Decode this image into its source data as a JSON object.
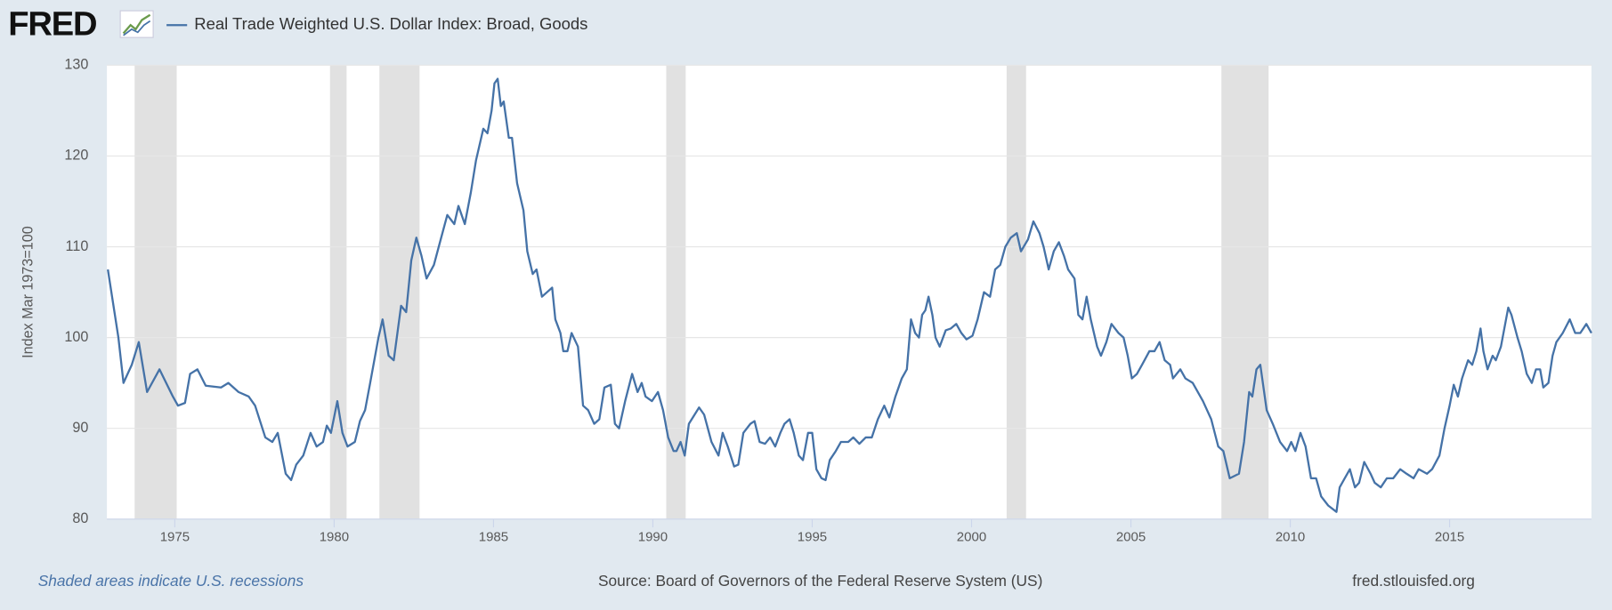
{
  "chart_data": {
    "type": "line",
    "logo": "FRED",
    "ylabel": "Index Mar 1973=100",
    "note": "Shaded areas indicate U.S. recessions",
    "source": "Source: Board of Governors of the Federal Reserve System (US)",
    "site": "fred.stlouisfed.org",
    "xlim": [
      1972.87,
      2019.45
    ],
    "xticks": [
      1975,
      1980,
      1985,
      1990,
      1995,
      2000,
      2005,
      2010,
      2015
    ],
    "ylim": [
      80,
      130
    ],
    "yticks": [
      80,
      90,
      100,
      110,
      120,
      130
    ],
    "grid": true,
    "recession_color": "#e1e1e1",
    "recessions": [
      [
        1973.74,
        1975.06
      ],
      [
        1979.87,
        1980.39
      ],
      [
        1981.42,
        1982.68
      ],
      [
        1990.42,
        1991.03
      ],
      [
        2001.1,
        2001.71
      ],
      [
        2007.84,
        2009.32
      ]
    ],
    "x": [
      1972.9,
      1973.23,
      1973.39,
      1973.65,
      1973.87,
      1974.13,
      1974.52,
      1974.94,
      1975.1,
      1975.32,
      1975.48,
      1975.71,
      1975.97,
      1976.45,
      1976.68,
      1977.0,
      1977.32,
      1977.52,
      1977.84,
      1978.06,
      1978.23,
      1978.48,
      1978.65,
      1978.81,
      1979.03,
      1979.26,
      1979.45,
      1979.65,
      1979.77,
      1979.9,
      1980.1,
      1980.26,
      1980.42,
      1980.65,
      1980.81,
      1980.97,
      1981.13,
      1981.39,
      1981.52,
      1981.71,
      1981.87,
      1982.1,
      1982.26,
      1982.42,
      1982.58,
      1982.74,
      1982.9,
      1983.13,
      1983.32,
      1983.55,
      1983.77,
      1983.9,
      1984.1,
      1984.29,
      1984.45,
      1984.68,
      1984.81,
      1984.94,
      1985.03,
      1985.13,
      1985.23,
      1985.32,
      1985.48,
      1985.58,
      1985.74,
      1985.94,
      1986.06,
      1986.23,
      1986.35,
      1986.52,
      1986.68,
      1986.84,
      1986.94,
      1987.1,
      1987.19,
      1987.32,
      1987.45,
      1987.65,
      1987.81,
      1987.97,
      1988.16,
      1988.32,
      1988.48,
      1988.68,
      1988.81,
      1988.94,
      1989.13,
      1989.35,
      1989.52,
      1989.65,
      1989.77,
      1989.97,
      1990.16,
      1990.32,
      1990.48,
      1990.65,
      1990.74,
      1990.87,
      1991.0,
      1991.13,
      1991.45,
      1991.61,
      1991.84,
      1992.06,
      1992.19,
      1992.35,
      1992.55,
      1992.68,
      1992.84,
      1993.06,
      1993.19,
      1993.35,
      1993.52,
      1993.68,
      1993.84,
      1994.0,
      1994.13,
      1994.29,
      1994.42,
      1994.58,
      1994.71,
      1994.87,
      1995.0,
      1995.13,
      1995.29,
      1995.42,
      1995.55,
      1995.74,
      1995.9,
      1996.13,
      1996.29,
      1996.48,
      1996.68,
      1996.87,
      1997.06,
      1997.26,
      1997.42,
      1997.61,
      1997.81,
      1997.97,
      1998.1,
      1998.23,
      1998.35,
      1998.45,
      1998.55,
      1998.65,
      1998.77,
      1998.87,
      1999.0,
      1999.19,
      1999.35,
      1999.52,
      1999.68,
      1999.84,
      2000.03,
      2000.19,
      2000.39,
      2000.58,
      2000.74,
      2000.9,
      2001.06,
      2001.23,
      2001.42,
      2001.55,
      2001.77,
      2001.94,
      2002.13,
      2002.26,
      2002.42,
      2002.58,
      2002.74,
      2002.9,
      2003.03,
      2003.23,
      2003.35,
      2003.48,
      2003.61,
      2003.74,
      2003.94,
      2004.06,
      2004.23,
      2004.39,
      2004.61,
      2004.77,
      2004.9,
      2005.03,
      2005.19,
      2005.35,
      2005.58,
      2005.74,
      2005.9,
      2006.06,
      2006.23,
      2006.32,
      2006.55,
      2006.71,
      2006.94,
      2007.26,
      2007.52,
      2007.74,
      2007.9,
      2008.1,
      2008.39,
      2008.55,
      2008.71,
      2008.81,
      2008.94,
      2009.06,
      2009.26,
      2009.45,
      2009.68,
      2009.9,
      2010.03,
      2010.16,
      2010.32,
      2010.48,
      2010.65,
      2010.81,
      2010.97,
      2011.19,
      2011.45,
      2011.55,
      2011.71,
      2011.87,
      2012.03,
      2012.16,
      2012.32,
      2012.52,
      2012.65,
      2012.84,
      2013.03,
      2013.23,
      2013.45,
      2013.65,
      2013.87,
      2014.03,
      2014.29,
      2014.45,
      2014.68,
      2014.84,
      2015.0,
      2015.13,
      2015.26,
      2015.39,
      2015.58,
      2015.71,
      2015.84,
      2015.97,
      2016.06,
      2016.19,
      2016.35,
      2016.45,
      2016.61,
      2016.84,
      2016.94,
      2017.13,
      2017.26,
      2017.42,
      2017.58,
      2017.71,
      2017.84,
      2017.94,
      2018.1,
      2018.23,
      2018.35,
      2018.55,
      2018.77,
      2018.94,
      2019.1,
      2019.29,
      2019.45
    ],
    "series": [
      {
        "name": "Real Trade Weighted U.S. Dollar Index: Broad, Goods",
        "color": "#4572a7",
        "values": [
          107.5,
          100,
          95,
          97,
          99.5,
          94,
          96.5,
          93.5,
          92.5,
          92.8,
          96,
          96.5,
          94.7,
          94.5,
          95,
          94,
          93.5,
          92.5,
          89,
          88.5,
          89.5,
          85,
          84.3,
          86,
          87,
          89.5,
          88,
          88.5,
          90.3,
          89.5,
          93,
          89.5,
          88,
          88.5,
          90.8,
          92,
          95,
          100,
          102,
          98,
          97.5,
          103.5,
          102.8,
          108.5,
          111,
          109,
          106.5,
          108,
          110.5,
          113.5,
          112.5,
          114.5,
          112.5,
          116,
          119.5,
          123,
          122.5,
          125,
          128,
          128.5,
          125.5,
          126,
          122,
          122,
          117,
          114,
          109.5,
          107,
          107.5,
          104.5,
          105,
          105.5,
          102,
          100.5,
          98.5,
          98.5,
          100.5,
          99,
          92.5,
          92,
          90.5,
          91,
          94.5,
          94.8,
          90.5,
          90,
          93,
          96,
          94,
          95,
          93.5,
          93,
          94,
          92,
          89,
          87.5,
          87.5,
          88.5,
          87,
          90.5,
          92.3,
          91.5,
          88.5,
          87,
          89.5,
          88,
          85.8,
          86,
          89.5,
          90.5,
          90.8,
          88.5,
          88.3,
          89,
          88,
          89.5,
          90.5,
          91,
          89.5,
          87,
          86.5,
          89.5,
          89.5,
          85.5,
          84.5,
          84.3,
          86.5,
          87.5,
          88.5,
          88.5,
          89,
          88.3,
          89,
          89,
          91,
          92.5,
          91.2,
          93.5,
          95.5,
          96.5,
          102,
          100.5,
          100,
          102.5,
          103,
          104.5,
          102.5,
          100,
          99,
          100.8,
          101,
          101.5,
          100.5,
          99.8,
          100.2,
          102,
          105,
          104.5,
          107.5,
          108,
          110,
          111,
          111.5,
          109.5,
          110.8,
          112.8,
          111.5,
          110,
          107.5,
          109.5,
          110.5,
          109,
          107.5,
          106.5,
          102.5,
          102,
          104.5,
          102,
          99,
          98,
          99.5,
          101.5,
          100.5,
          100,
          98,
          95.5,
          96,
          97,
          98.5,
          98.5,
          99.5,
          97.5,
          97,
          95.5,
          96.5,
          95.5,
          95,
          93,
          91,
          88,
          87.5,
          84.5,
          85,
          88.5,
          94,
          93.5,
          96.5,
          97,
          92,
          90.5,
          88.5,
          87.5,
          88.5,
          87.5,
          89.5,
          88,
          84.5,
          84.5,
          82.5,
          81.5,
          80.8,
          83.5,
          84.5,
          85.5,
          83.5,
          84,
          86.3,
          85,
          84,
          83.5,
          84.5,
          84.5,
          85.5,
          85,
          84.5,
          85.5,
          85,
          85.5,
          87,
          90,
          92.5,
          94.8,
          93.5,
          95.5,
          97.5,
          97,
          98.5,
          101,
          98.5,
          96.5,
          98,
          97.5,
          99,
          103.3,
          102.5,
          100,
          98.5,
          96,
          95,
          96.5,
          96.5,
          94.5,
          95,
          98,
          99.5,
          100.5,
          102,
          100.5,
          100.5,
          101.5,
          100.5
        ]
      }
    ]
  }
}
